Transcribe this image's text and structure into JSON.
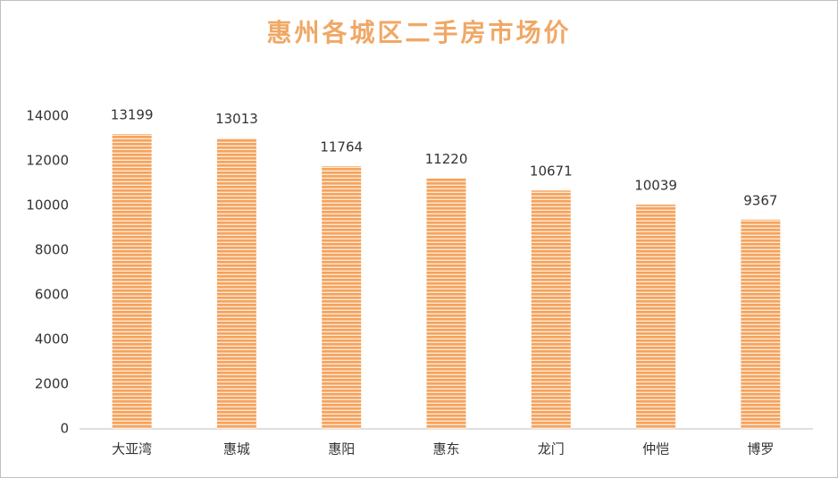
{
  "chart_data": {
    "type": "bar",
    "title": "惠州各城区二手房市场价",
    "categories": [
      "大亚湾",
      "惠城",
      "惠阳",
      "惠东",
      "龙门",
      "仲恺",
      "博罗"
    ],
    "values": [
      13199,
      13013,
      11764,
      11220,
      10671,
      10039,
      9367
    ],
    "color": "#f5a25c",
    "title_color": "#f0a866",
    "ylim": [
      0,
      14000
    ],
    "yticks": [
      0,
      2000,
      4000,
      6000,
      8000,
      10000,
      12000,
      14000
    ],
    "grid": false
  }
}
